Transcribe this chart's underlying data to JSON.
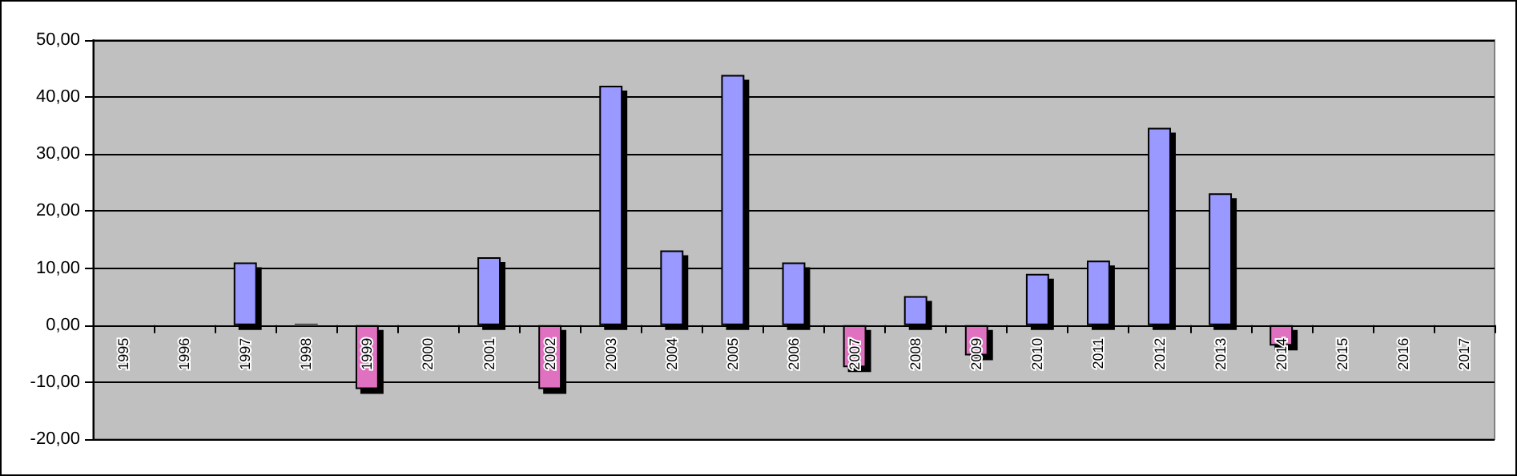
{
  "chart_data": {
    "type": "bar",
    "categories": [
      "1995",
      "1996",
      "1997",
      "1998",
      "1999",
      "2000",
      "2001",
      "2002",
      "2003",
      "2004",
      "2005",
      "2006",
      "2007",
      "2008",
      "2009",
      "2010",
      "2011",
      "2012",
      "2013",
      "2014",
      "2015",
      "2016",
      "2017"
    ],
    "values": [
      null,
      null,
      11.0,
      0.3,
      -11.2,
      null,
      11.9,
      -11.2,
      42.0,
      13.1,
      43.9,
      11.0,
      -7.4,
      5.1,
      -5.3,
      9.0,
      11.3,
      34.6,
      23.1,
      -3.6,
      null,
      null,
      null
    ],
    "colors": [
      "#9999ff",
      "#9999ff",
      "#9999ff",
      "#9999ff",
      "#e070c0",
      "#9999ff",
      "#9999ff",
      "#e070c0",
      "#9999ff",
      "#9999ff",
      "#9999ff",
      "#9999ff",
      "#e070c0",
      "#9999ff",
      "#e070c0",
      "#9999ff",
      "#9999ff",
      "#9999ff",
      "#9999ff",
      "#e070c0",
      "#9999ff",
      "#9999ff",
      "#9999ff"
    ],
    "ylim": [
      -20,
      50
    ],
    "yticks": [
      {
        "value": -20,
        "label": "-20,00"
      },
      {
        "value": -10,
        "label": "-10,00"
      },
      {
        "value": 0,
        "label": "0,00"
      },
      {
        "value": 10,
        "label": "10,00"
      },
      {
        "value": 20,
        "label": "20,00"
      },
      {
        "value": 30,
        "label": "30,00"
      },
      {
        "value": 40,
        "label": "40,00"
      },
      {
        "value": 50,
        "label": "50,00"
      }
    ],
    "grid": "y"
  }
}
